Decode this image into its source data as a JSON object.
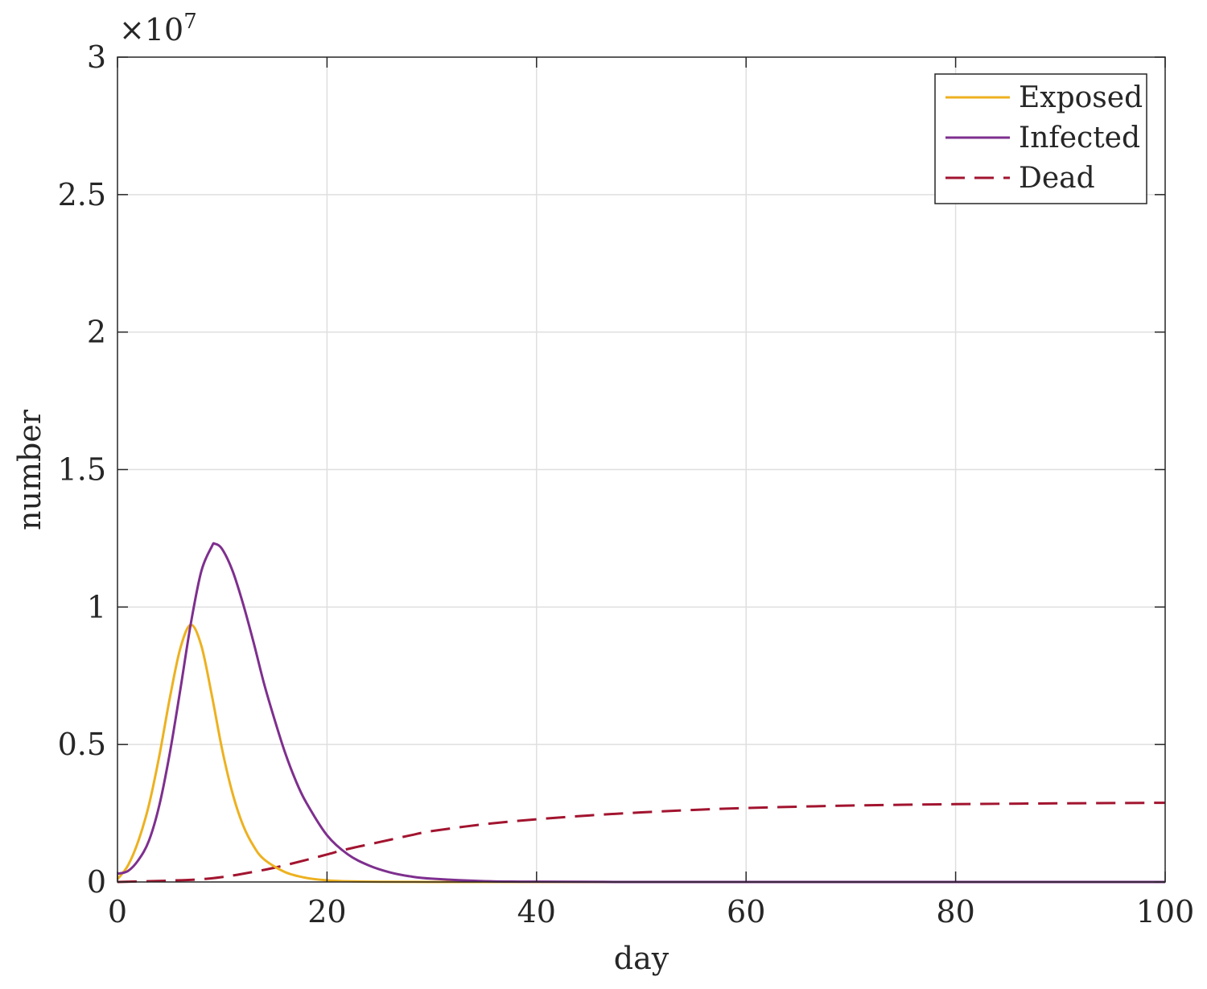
{
  "chart_data": {
    "type": "line",
    "xlabel": "day",
    "ylabel": "number",
    "y_exponent_label": "×10",
    "y_exponent_power": "7",
    "xlim": [
      0,
      100
    ],
    "ylim": [
      0,
      30000000
    ],
    "x_ticks": [
      0,
      20,
      40,
      60,
      80,
      100
    ],
    "x_tick_labels": [
      "0",
      "20",
      "40",
      "60",
      "80",
      "100"
    ],
    "y_ticks": [
      0,
      5000000,
      10000000,
      15000000,
      20000000,
      25000000,
      30000000
    ],
    "y_tick_labels": [
      "0",
      "0.5",
      "1",
      "1.5",
      "2",
      "2.5",
      "3"
    ],
    "grid": true,
    "legend_position": "top-right",
    "series": [
      {
        "name": "Exposed",
        "color": "#EDB120",
        "style": "solid",
        "x": [
          0,
          1,
          2,
          3,
          4,
          5,
          6,
          7,
          8,
          9,
          10,
          11,
          12,
          13,
          14,
          16,
          18,
          20,
          22,
          25,
          30,
          35,
          40,
          50,
          60,
          70,
          80,
          90,
          100
        ],
        "y": [
          100000,
          600000,
          1500000,
          2800000,
          4600000,
          6700000,
          8500000,
          9350000,
          8600000,
          6800000,
          4800000,
          3200000,
          2050000,
          1300000,
          820000,
          360000,
          150000,
          60000,
          25000,
          8000,
          1000,
          100,
          0,
          0,
          0,
          0,
          0,
          0,
          0
        ]
      },
      {
        "name": "Infected",
        "color": "#7E2F8E",
        "style": "solid",
        "x": [
          0,
          1,
          2,
          3,
          4,
          5,
          6,
          7,
          8,
          9,
          9.3,
          10,
          11,
          12,
          13,
          14,
          15,
          16,
          17,
          18,
          20,
          22,
          24,
          26,
          28,
          30,
          35,
          40,
          50,
          60,
          70,
          80,
          90,
          100
        ],
        "y": [
          300000,
          400000,
          800000,
          1500000,
          2800000,
          4700000,
          7000000,
          9400000,
          11300000,
          12200000,
          12300000,
          12100000,
          11300000,
          10100000,
          8700000,
          7200000,
          5900000,
          4700000,
          3700000,
          2900000,
          1700000,
          1000000,
          600000,
          350000,
          200000,
          120000,
          30000,
          10000,
          0,
          0,
          0,
          0,
          0,
          0
        ]
      },
      {
        "name": "Dead",
        "color": "#A2142F",
        "style": "dashed",
        "x": [
          0,
          5,
          8,
          10,
          12,
          15,
          18,
          20,
          22,
          25,
          28,
          30,
          35,
          40,
          45,
          50,
          55,
          60,
          70,
          80,
          90,
          100
        ],
        "y": [
          0,
          50000,
          100000,
          180000,
          300000,
          520000,
          800000,
          1000000,
          1200000,
          1450000,
          1700000,
          1850000,
          2100000,
          2280000,
          2420000,
          2530000,
          2620000,
          2690000,
          2780000,
          2830000,
          2860000,
          2880000
        ]
      }
    ]
  }
}
